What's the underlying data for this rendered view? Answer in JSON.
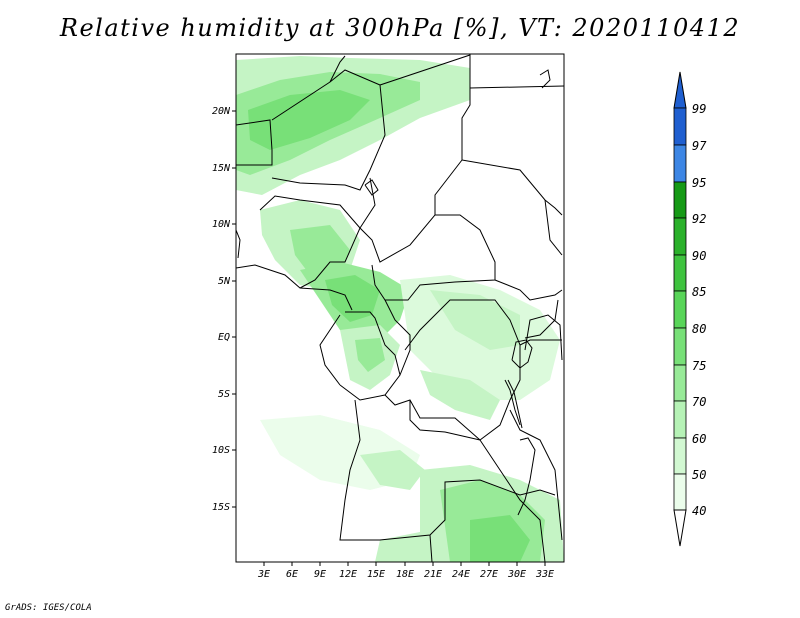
{
  "title": "Relative humidity at 300hPa [%], VT: 2020110412",
  "credit": "GrADS: IGES/COLA",
  "map": {
    "lat_labels": [
      "20N",
      "15N",
      "10N",
      "5N",
      "EQ",
      "5S",
      "10S",
      "15S"
    ],
    "lon_labels": [
      "3E",
      "6E",
      "9E",
      "12E",
      "15E",
      "18E",
      "21E",
      "24E",
      "27E",
      "30E",
      "33E"
    ]
  },
  "colorbar": {
    "levels": [
      "99",
      "97",
      "95",
      "92",
      "90",
      "85",
      "80",
      "75",
      "70",
      "60",
      "50",
      "40"
    ],
    "colors": [
      "#1f5fd0",
      "#3d86e4",
      "#169a16",
      "#2bb12b",
      "#3fc33f",
      "#59d559",
      "#78e078",
      "#98ea98",
      "#b6f2b6",
      "#d2f8d2",
      "#ebfdeb"
    ]
  }
}
